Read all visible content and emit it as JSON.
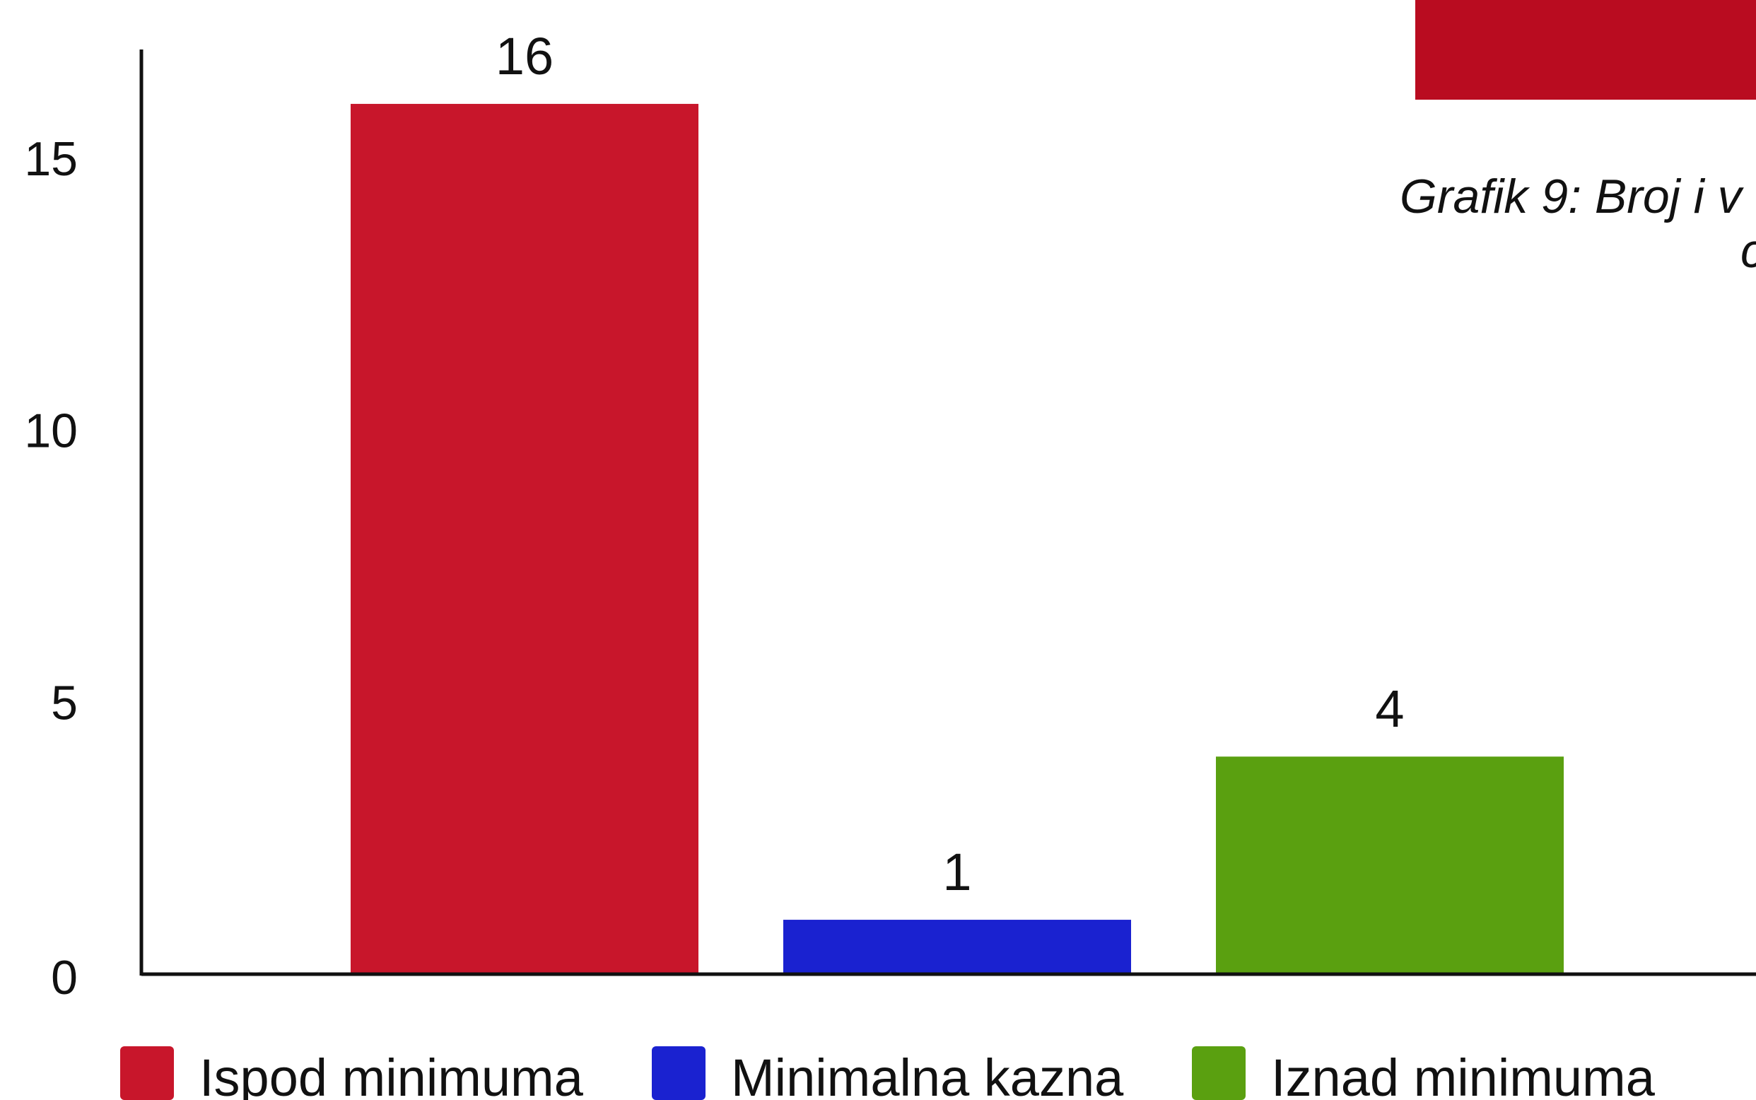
{
  "chart_data": {
    "type": "bar",
    "title": "",
    "xlabel": "",
    "ylabel": "",
    "ylim": [
      0,
      17
    ],
    "yticks": [
      0,
      5,
      10,
      15
    ],
    "grid": false,
    "legend_position": "bottom",
    "bars": [
      {
        "label": "Ispod minimuma",
        "value": 16,
        "value_label": "16",
        "color": "#c8162b"
      },
      {
        "label": "Minimalna kazna",
        "value": 1,
        "value_label": "1",
        "color": "#1a22d0"
      },
      {
        "label": "Iznad minimuma",
        "value": 4,
        "value_label": "4",
        "color": "#5aa010"
      }
    ]
  },
  "caption": {
    "line1": "Grafik 9: Broj i v",
    "line2": "c",
    "accent_color": "#b90c20"
  }
}
